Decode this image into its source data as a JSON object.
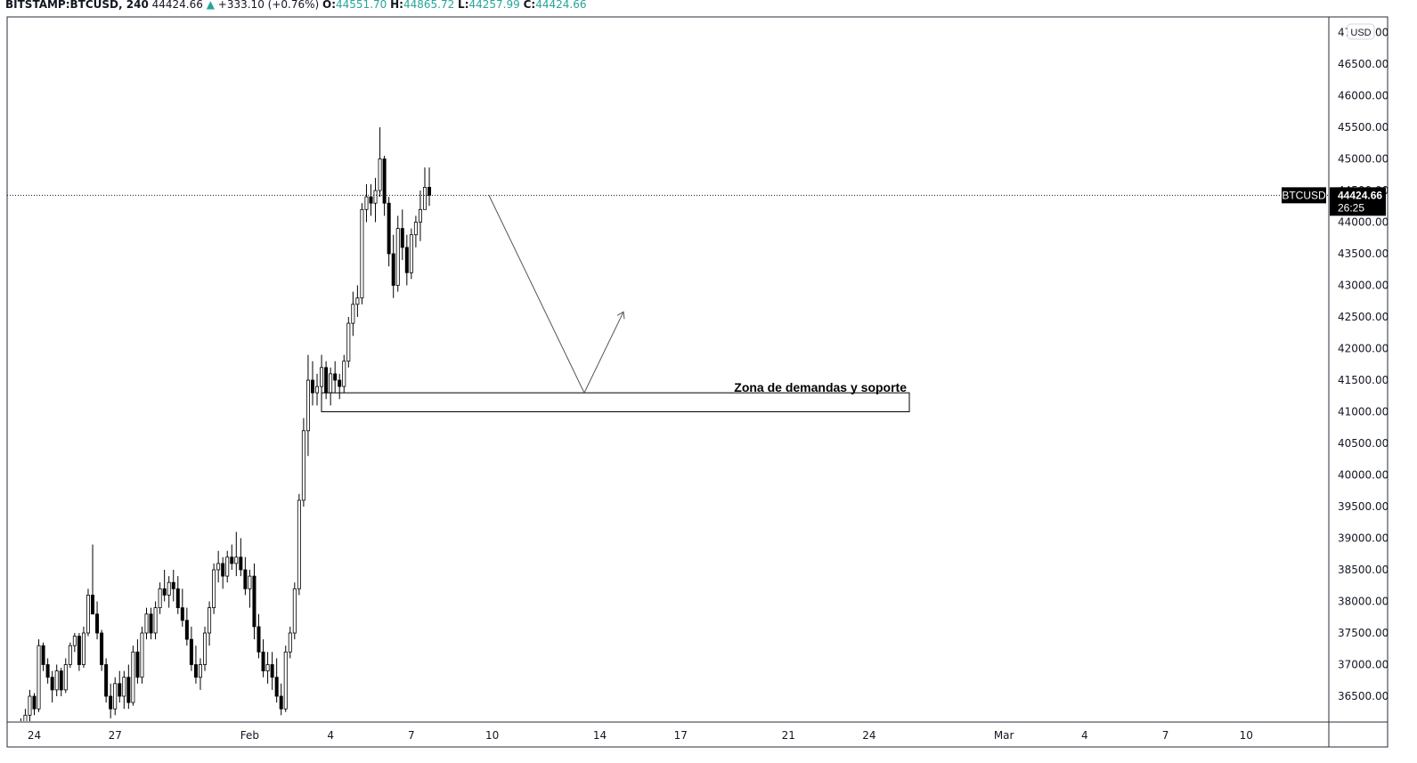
{
  "header": {
    "symbol": "BITSTAMP:BTCUSD, 240",
    "last": "44424.66",
    "up_arrow": "▲",
    "change": "+333.10 (+0.76%)",
    "o_label": "O:",
    "o_value": "44551.70",
    "h_label": "H:",
    "h_value": "44865.72",
    "l_label": "L:",
    "l_value": "44257.99",
    "c_label": "C:",
    "c_value": "44424.66"
  },
  "price_label": {
    "symbol": "BTCUSD",
    "price": "44424.66",
    "countdown": "26:25"
  },
  "currency_badge": "USD",
  "annotation": {
    "text": "Zona de demandas y soporte"
  },
  "colors": {
    "up_text": "#26a69a",
    "candle_up": "#ffffff",
    "candle_down": "#000000",
    "price_label_bg": "#000000"
  },
  "chart_data": {
    "type": "candlestick",
    "yaxis_ticks": [
      "47000.00",
      "46500.00",
      "46000.00",
      "45500.00",
      "45000.00",
      "44500.00",
      "44000.00",
      "43500.00",
      "43000.00",
      "42500.00",
      "42000.00",
      "41500.00",
      "41000.00",
      "40500.00",
      "40000.00",
      "39500.00",
      "39000.00",
      "38500.00",
      "38000.00",
      "37500.00",
      "37000.00",
      "36500.00"
    ],
    "ylim": [
      36100,
      47250
    ],
    "xaxis_ticks": [
      {
        "label": "24",
        "bar": 0
      },
      {
        "label": "27",
        "bar": 18
      },
      {
        "label": "Feb",
        "bar": 48
      },
      {
        "label": "4",
        "bar": 66
      },
      {
        "label": "7",
        "bar": 84
      },
      {
        "label": "10",
        "bar": 102
      },
      {
        "label": "14",
        "bar": 126
      },
      {
        "label": "17",
        "bar": 144
      },
      {
        "label": "21",
        "bar": 168
      },
      {
        "label": "24",
        "bar": 186
      },
      {
        "label": "Mar",
        "bar": 216
      },
      {
        "label": "4",
        "bar": 234
      },
      {
        "label": "7",
        "bar": 252
      },
      {
        "label": "10",
        "bar": 270
      }
    ],
    "current_price": 44424.66,
    "zone": {
      "low": 41000,
      "high": 41300,
      "start_bar": 64,
      "end_bar": 196
    },
    "projection": [
      {
        "bar": 103,
        "price": 44424
      },
      {
        "bar": 124,
        "price": 41300
      },
      {
        "bar": 133,
        "price": 42580
      }
    ],
    "ohlc": [
      [
        36050,
        36100,
        35900,
        36000
      ],
      [
        36000,
        36150,
        35950,
        36080
      ],
      [
        36080,
        36300,
        36000,
        36200
      ],
      [
        36200,
        36600,
        36100,
        36500
      ],
      [
        36500,
        36550,
        36200,
        36300
      ],
      [
        36300,
        37400,
        36250,
        37300
      ],
      [
        37300,
        37350,
        36900,
        37000
      ],
      [
        37000,
        37100,
        36700,
        36800
      ],
      [
        36800,
        36900,
        36400,
        36600
      ],
      [
        36600,
        37000,
        36500,
        36900
      ],
      [
        36900,
        36950,
        36500,
        36600
      ],
      [
        36600,
        37100,
        36550,
        37000
      ],
      [
        37000,
        37350,
        36950,
        37300
      ],
      [
        37300,
        37500,
        37200,
        37450
      ],
      [
        37450,
        37500,
        36900,
        37000
      ],
      [
        37000,
        37600,
        36950,
        37500
      ],
      [
        37500,
        38200,
        37450,
        38100
      ],
      [
        38100,
        38900,
        37800,
        37800
      ],
      [
        37800,
        38000,
        37400,
        37500
      ],
      [
        37500,
        37550,
        36900,
        37000
      ],
      [
        37000,
        37100,
        36400,
        36500
      ],
      [
        36500,
        36700,
        36150,
        36300
      ],
      [
        36300,
        36800,
        36200,
        36700
      ],
      [
        36700,
        36900,
        36400,
        36500
      ],
      [
        36500,
        36900,
        36300,
        36800
      ],
      [
        36800,
        37000,
        36300,
        36400
      ],
      [
        36400,
        37300,
        36350,
        37200
      ],
      [
        37200,
        37400,
        36700,
        36800
      ],
      [
        36800,
        37600,
        36700,
        37500
      ],
      [
        37500,
        37900,
        37400,
        37800
      ],
      [
        37800,
        37900,
        37400,
        37500
      ],
      [
        37500,
        38000,
        37400,
        37900
      ],
      [
        37900,
        38300,
        37800,
        38200
      ],
      [
        38200,
        38500,
        38000,
        38100
      ],
      [
        38100,
        38400,
        37900,
        38300
      ],
      [
        38300,
        38500,
        38000,
        38200
      ],
      [
        38200,
        38400,
        37800,
        37900
      ],
      [
        37900,
        38200,
        37600,
        37700
      ],
      [
        37700,
        37900,
        37300,
        37400
      ],
      [
        37400,
        37600,
        36900,
        37000
      ],
      [
        37000,
        37300,
        36700,
        36800
      ],
      [
        36800,
        37100,
        36600,
        37000
      ],
      [
        37000,
        37600,
        36900,
        37500
      ],
      [
        37500,
        38000,
        37300,
        37900
      ],
      [
        37900,
        38600,
        37800,
        38500
      ],
      [
        38500,
        38800,
        38300,
        38600
      ],
      [
        38600,
        38700,
        38200,
        38400
      ],
      [
        38400,
        38800,
        38300,
        38700
      ],
      [
        38700,
        38900,
        38500,
        38600
      ],
      [
        38600,
        39100,
        38400,
        38700
      ],
      [
        38700,
        39000,
        38400,
        38500
      ],
      [
        38500,
        38700,
        38100,
        38200
      ],
      [
        38200,
        38500,
        37900,
        38400
      ],
      [
        38400,
        38600,
        37400,
        37600
      ],
      [
        37600,
        37800,
        37100,
        37200
      ],
      [
        37200,
        37400,
        36800,
        36900
      ],
      [
        36900,
        37200,
        36700,
        37000
      ],
      [
        37000,
        37200,
        36600,
        36800
      ],
      [
        36800,
        37100,
        36400,
        36500
      ],
      [
        36500,
        36700,
        36200,
        36300
      ],
      [
        36300,
        37300,
        36250,
        37200
      ],
      [
        37200,
        37600,
        37100,
        37500
      ],
      [
        37500,
        38300,
        37400,
        38200
      ],
      [
        38200,
        39700,
        38100,
        39600
      ],
      [
        39600,
        40900,
        39500,
        40700
      ],
      [
        40700,
        41900,
        40300,
        41500
      ],
      [
        41500,
        41800,
        41100,
        41300
      ],
      [
        41300,
        41600,
        41100,
        41400
      ],
      [
        41400,
        41900,
        41200,
        41700
      ],
      [
        41700,
        41800,
        41200,
        41300
      ],
      [
        41300,
        41700,
        41100,
        41600
      ],
      [
        41600,
        41800,
        41300,
        41500
      ],
      [
        41500,
        41600,
        41200,
        41400
      ],
      [
        41400,
        41900,
        41300,
        41800
      ],
      [
        41800,
        42500,
        41700,
        42400
      ],
      [
        42400,
        42900,
        42200,
        42700
      ],
      [
        42700,
        43000,
        42500,
        42800
      ],
      [
        42800,
        44300,
        42700,
        44200
      ],
      [
        44200,
        44600,
        44000,
        44400
      ],
      [
        44400,
        44600,
        44100,
        44300
      ],
      [
        44300,
        44700,
        44000,
        44500
      ],
      [
        44500,
        45500,
        44400,
        45000
      ],
      [
        45000,
        45050,
        44100,
        44300
      ],
      [
        44300,
        44400,
        43300,
        43500
      ],
      [
        43500,
        43800,
        42800,
        43000
      ],
      [
        43000,
        44100,
        42900,
        43900
      ],
      [
        43900,
        44200,
        43400,
        43600
      ],
      [
        43600,
        43800,
        43000,
        43200
      ],
      [
        43200,
        43900,
        43100,
        43800
      ],
      [
        43800,
        44100,
        43600,
        44000
      ],
      [
        44000,
        44500,
        43700,
        44200
      ],
      [
        44200,
        44865,
        44200,
        44551
      ],
      [
        44551,
        44865,
        44257,
        44424
      ]
    ]
  }
}
